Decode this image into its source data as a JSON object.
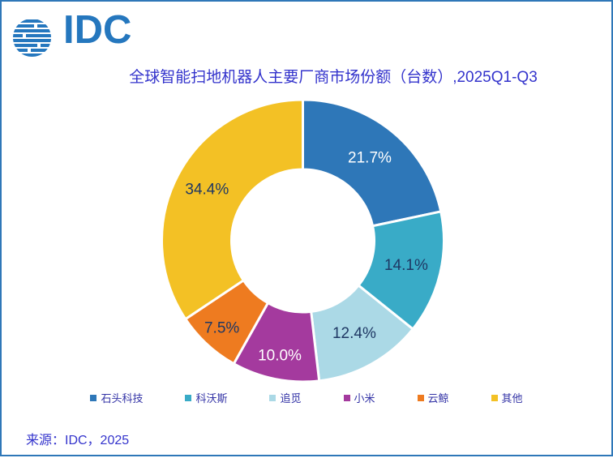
{
  "logo": {
    "text": "IDC",
    "color": "#2577BE",
    "globe_icon": "striped-globe-icon"
  },
  "title": {
    "text": "全球智能扫地机器人主要厂商市场份额（台数）,2025Q1-Q3",
    "color": "#3333CC"
  },
  "chart_data": {
    "type": "pie",
    "subtype": "donut",
    "title": "全球智能扫地机器人主要厂商市场份额（台数）,2025Q1-Q3",
    "unit": "percent share of units",
    "start_angle_deg": 0,
    "direction": "clockwise",
    "inner_radius_ratio": 0.51,
    "legend_position": "bottom",
    "segments": [
      {
        "name": "石头科技",
        "value": 21.7,
        "percent_label": "21.7%",
        "color": "#2E77B8",
        "label_color": "#FFFFFF"
      },
      {
        "name": "科沃斯",
        "value": 14.1,
        "percent_label": "14.1%",
        "color": "#39ABC7",
        "label_color": "#1F3864"
      },
      {
        "name": "追觅",
        "value": 12.4,
        "percent_label": "12.4%",
        "color": "#ABD9E6",
        "label_color": "#1F3864"
      },
      {
        "name": "小米",
        "value": 10.0,
        "percent_label": "10.0%",
        "color": "#A43A9E",
        "label_color": "#FFFFFF"
      },
      {
        "name": "云鲸",
        "value": 7.5,
        "percent_label": "7.5%",
        "color": "#EE7B20",
        "label_color": "#1F3864"
      },
      {
        "name": "其他",
        "value": 34.4,
        "percent_label": "34.4%",
        "color": "#F3C125",
        "label_color": "#1F3864"
      }
    ]
  },
  "source": {
    "text": "来源：IDC，2025",
    "color": "#3333CC"
  }
}
